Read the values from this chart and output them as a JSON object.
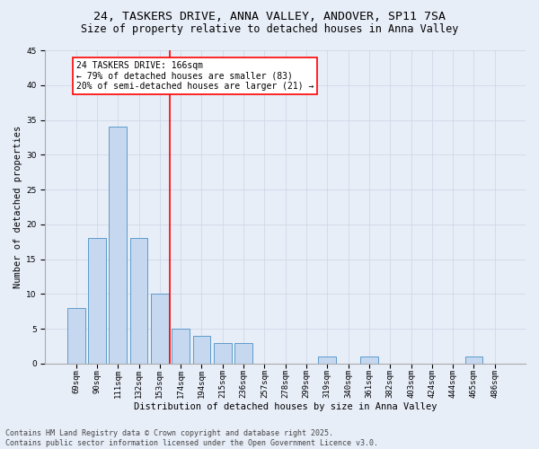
{
  "title1": "24, TASKERS DRIVE, ANNA VALLEY, ANDOVER, SP11 7SA",
  "title2": "Size of property relative to detached houses in Anna Valley",
  "xlabel": "Distribution of detached houses by size in Anna Valley",
  "ylabel": "Number of detached properties",
  "bar_labels": [
    "69sqm",
    "90sqm",
    "111sqm",
    "132sqm",
    "153sqm",
    "174sqm",
    "194sqm",
    "215sqm",
    "236sqm",
    "257sqm",
    "278sqm",
    "299sqm",
    "319sqm",
    "340sqm",
    "361sqm",
    "382sqm",
    "403sqm",
    "424sqm",
    "444sqm",
    "465sqm",
    "486sqm"
  ],
  "bar_values": [
    8,
    18,
    34,
    18,
    10,
    5,
    4,
    3,
    3,
    0,
    0,
    0,
    1,
    0,
    1,
    0,
    0,
    0,
    0,
    1,
    0
  ],
  "bar_color": "#c5d8f0",
  "bar_edgecolor": "#4a90c4",
  "vline_x": 4.5,
  "vline_color": "red",
  "annotation_text": "24 TASKERS DRIVE: 166sqm\n← 79% of detached houses are smaller (83)\n20% of semi-detached houses are larger (21) →",
  "annotation_box_color": "white",
  "annotation_box_edgecolor": "red",
  "ylim": [
    0,
    45
  ],
  "yticks": [
    0,
    5,
    10,
    15,
    20,
    25,
    30,
    35,
    40,
    45
  ],
  "grid_color": "#d0d8e8",
  "bg_color": "#e8eef8",
  "footer1": "Contains HM Land Registry data © Crown copyright and database right 2025.",
  "footer2": "Contains public sector information licensed under the Open Government Licence v3.0.",
  "title_fontsize": 9.5,
  "subtitle_fontsize": 8.5,
  "axis_label_fontsize": 7.5,
  "tick_fontsize": 6.5,
  "annotation_fontsize": 7,
  "footer_fontsize": 6.0
}
